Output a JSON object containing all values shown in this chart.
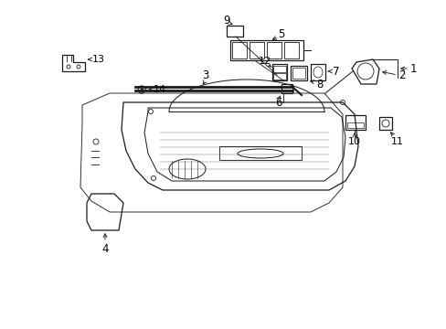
{
  "bg_color": "#ffffff",
  "fig_width": 4.89,
  "fig_height": 3.6,
  "dpi": 100,
  "line_color": "#1a1a1a",
  "text_color": "#000000",
  "font_size": 8.5
}
